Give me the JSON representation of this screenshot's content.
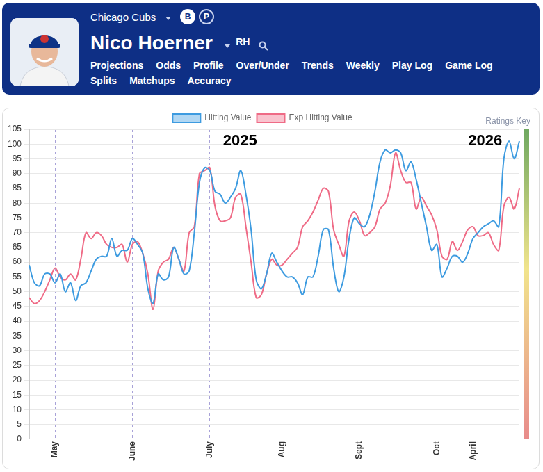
{
  "header": {
    "team": "Chicago Cubs",
    "toggles": [
      "B",
      "P"
    ],
    "toggle_selected": "B",
    "player": "Nico Hoerner",
    "bats": "RH",
    "nav": [
      [
        "Projections",
        "Odds",
        "Profile",
        "Over/Under",
        "Trends",
        "Weekly",
        "Play Log",
        "Game Log"
      ],
      [
        "Splits",
        "Matchups",
        "Accuracy"
      ]
    ],
    "nav_active": "Trends"
  },
  "ratings_key": "Ratings Key",
  "chart_data": {
    "type": "line",
    "categories": [
      null,
      null,
      null,
      null,
      null,
      "May",
      null,
      null,
      null,
      null,
      null,
      null,
      null,
      null,
      null,
      null,
      null,
      null,
      null,
      null,
      "June",
      null,
      null,
      null,
      null,
      null,
      null,
      null,
      null,
      null,
      null,
      null,
      null,
      null,
      null,
      "July",
      null,
      null,
      null,
      null,
      null,
      null,
      null,
      null,
      null,
      null,
      null,
      null,
      null,
      "Aug",
      null,
      null,
      null,
      null,
      null,
      null,
      null,
      null,
      null,
      null,
      null,
      null,
      null,
      null,
      "Sept",
      null,
      null,
      null,
      null,
      null,
      null,
      null,
      null,
      null,
      null,
      null,
      null,
      null,
      null,
      "Oct",
      null,
      null,
      null,
      null,
      null,
      null,
      "April",
      null,
      null,
      null,
      null,
      null,
      null,
      null,
      null,
      null
    ],
    "series": [
      {
        "name": "Hitting Value",
        "color": "#3d9be0",
        "values": [
          59,
          53,
          52,
          56,
          56,
          53,
          56,
          50,
          53,
          47,
          52,
          53,
          57,
          61,
          62,
          62,
          68,
          62,
          64,
          64,
          68,
          66,
          63,
          51,
          46,
          56,
          54,
          55,
          65,
          61,
          56,
          57,
          70,
          87,
          92,
          91,
          84,
          83,
          80,
          82,
          85,
          91,
          83,
          71,
          54,
          51,
          56,
          63,
          60,
          57,
          55,
          55,
          53,
          49,
          55,
          55,
          62,
          71,
          71,
          58,
          50,
          55,
          68,
          75,
          73,
          72,
          76,
          84,
          94,
          98,
          97,
          98,
          97,
          91,
          94,
          88,
          80,
          72,
          64,
          66,
          55,
          58,
          62,
          62,
          60,
          63,
          68,
          70,
          72,
          73,
          74,
          72,
          95,
          101,
          95,
          101
        ]
      },
      {
        "name": "Exp Hitting Value",
        "color": "#ef6b86",
        "values": [
          48,
          46,
          47,
          50,
          54,
          58,
          55,
          54,
          56,
          54,
          61,
          70,
          68,
          70,
          69,
          66,
          65,
          65,
          66,
          60,
          66,
          67,
          63,
          56,
          44,
          57,
          60,
          61,
          65,
          61,
          57,
          70,
          72,
          90,
          91,
          92,
          79,
          74,
          74,
          75,
          82,
          83,
          72,
          60,
          48,
          49,
          56,
          61,
          59,
          59,
          61,
          63,
          65,
          72,
          74,
          77,
          81,
          85,
          84,
          71,
          66,
          62,
          74,
          77,
          74,
          69,
          70,
          72,
          78,
          80,
          86,
          97,
          91,
          87,
          87,
          78,
          82,
          79,
          76,
          71,
          62,
          61,
          67,
          64,
          67,
          71,
          72,
          69,
          69,
          70,
          66,
          64,
          79,
          82,
          78,
          85
        ]
      }
    ],
    "ylim": [
      0,
      105
    ],
    "yticks": [
      0,
      5,
      10,
      15,
      20,
      25,
      30,
      35,
      40,
      45,
      50,
      55,
      60,
      65,
      70,
      75,
      80,
      85,
      90,
      95,
      100,
      105
    ],
    "grid": true,
    "legend": "top",
    "annotations": [
      "2025",
      "2026"
    ]
  }
}
